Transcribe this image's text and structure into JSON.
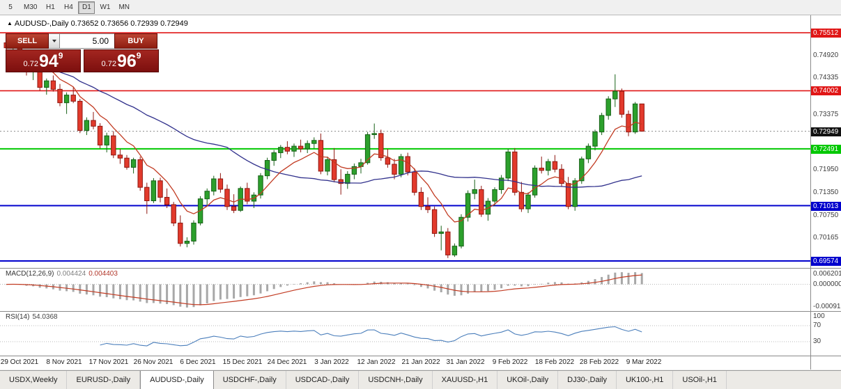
{
  "toolbar": {
    "timeframes": [
      "5",
      "M30",
      "H1",
      "H4",
      "D1",
      "W1",
      "MN"
    ],
    "active": "D1"
  },
  "chart": {
    "marker": "▲",
    "title_symbol": "AUDUSD-,Daily",
    "title_ohlc": "0.73652 0.73656 0.72939 0.72949"
  },
  "trade_panel": {
    "sell_label": "SELL",
    "buy_label": "BUY",
    "volume": "5.00",
    "sell_small": "0.72",
    "sell_big": "94",
    "sell_sup": "9",
    "buy_small": "0.72",
    "buy_big": "96",
    "buy_sup": "9"
  },
  "macd": {
    "name": "MACD(12,26,9)",
    "main_value": "0.004424",
    "signal_value": "0.004403",
    "axis_labels": [
      "0.006201",
      "0.000000",
      "-0.000919"
    ]
  },
  "rsi": {
    "name": "RSI(14)",
    "value": "54.0368",
    "axis_labels": [
      "100",
      "70",
      "30"
    ],
    "level_lines": [
      70,
      30
    ]
  },
  "tabs": {
    "items": [
      "USDX,Weekly",
      "EURUSD-,Daily",
      "AUDUSD-,Daily",
      "USDCHF-,Daily",
      "USDCAD-,Daily",
      "USDCNH-,Daily",
      "XAUUSD-,H1",
      "UKOil-,Daily",
      "DJ30-,Daily",
      "UK100-,H1",
      "USOil-,H1"
    ],
    "active": "AUDUSD-,Daily"
  },
  "colors": {
    "bull": "#2ca02c",
    "bull_edge": "#176117",
    "bear": "#e23a2c",
    "bear_edge": "#8f1710",
    "ma_fast": "#c23b22",
    "ma_slow": "#31318c",
    "macd_hist": "#a8a8a8",
    "macd_signal": "#c23b22",
    "rsi_line": "#4a7ebb",
    "grid_dotted": "#b8b8b8",
    "current_label_bg": "#111111"
  },
  "chart_data": {
    "type": "candlestick",
    "symbol": "AUDUSD-,Daily",
    "ylim": [
      0.69393,
      0.75965
    ],
    "current_price": 0.72949,
    "current_label": "0.72949",
    "price_axis_ticks": [
      "0.74920",
      "0.74335",
      "0.73375",
      "0.71950",
      "0.71350",
      "0.70750",
      "0.70165"
    ],
    "levels": [
      {
        "price": 0.75512,
        "label": "0.75512",
        "color": "#e01616",
        "width": 1.6
      },
      {
        "price": 0.74002,
        "label": "0.74002",
        "color": "#e01616",
        "width": 1.6
      },
      {
        "price": 0.72491,
        "label": "0.72491",
        "color": "#00c800",
        "width": 2
      },
      {
        "price": 0.71013,
        "label": "0.71013",
        "color": "#0000cd",
        "width": 2
      },
      {
        "price": 0.69574,
        "label": "0.69574",
        "color": "#0000cd",
        "width": 2
      }
    ],
    "x_dates": [
      "29 Oct 2021",
      "8 Nov 2021",
      "17 Nov 2021",
      "26 Nov 2021",
      "6 Dec 2021",
      "15 Dec 2021",
      "24 Dec 2021",
      "3 Jan 2022",
      "12 Jan 2022",
      "21 Jan 2022",
      "31 Jan 2022",
      "9 Feb 2022",
      "18 Feb 2022",
      "28 Feb 2022",
      "9 Mar 2022"
    ],
    "overlays": [
      {
        "name": "ma-fast",
        "type": "ema",
        "period": 8,
        "color": "#c23b22"
      },
      {
        "name": "ma-slow",
        "type": "sma",
        "period": 34,
        "color": "#31318c"
      }
    ],
    "candles_ohlc": [
      [
        0.7525,
        0.7545,
        0.7505,
        0.7512
      ],
      [
        0.7512,
        0.7536,
        0.7495,
        0.753
      ],
      [
        0.753,
        0.7538,
        0.7468,
        0.7476
      ],
      [
        0.7476,
        0.7496,
        0.744,
        0.7449
      ],
      [
        0.7449,
        0.747,
        0.7428,
        0.7462
      ],
      [
        0.7462,
        0.7475,
        0.74,
        0.7409
      ],
      [
        0.7409,
        0.7432,
        0.739,
        0.7426
      ],
      [
        0.7426,
        0.744,
        0.7398,
        0.7404
      ],
      [
        0.7404,
        0.7418,
        0.736,
        0.7369
      ],
      [
        0.7369,
        0.7396,
        0.734,
        0.7389
      ],
      [
        0.7389,
        0.741,
        0.7368,
        0.7373
      ],
      [
        0.7373,
        0.7379,
        0.729,
        0.7297
      ],
      [
        0.7297,
        0.7331,
        0.7285,
        0.7323
      ],
      [
        0.7323,
        0.7345,
        0.73,
        0.7308
      ],
      [
        0.7308,
        0.7316,
        0.725,
        0.7259
      ],
      [
        0.7259,
        0.7291,
        0.724,
        0.7283
      ],
      [
        0.7283,
        0.7295,
        0.7225,
        0.7233
      ],
      [
        0.7233,
        0.7249,
        0.721,
        0.7225
      ],
      [
        0.7225,
        0.7233,
        0.7195,
        0.7201
      ],
      [
        0.7201,
        0.7226,
        0.7185,
        0.7221
      ],
      [
        0.7221,
        0.7229,
        0.714,
        0.7149
      ],
      [
        0.7149,
        0.7161,
        0.708,
        0.7114
      ],
      [
        0.7114,
        0.7173,
        0.7108,
        0.7166
      ],
      [
        0.7166,
        0.7174,
        0.711,
        0.7123
      ],
      [
        0.7123,
        0.7146,
        0.7095,
        0.7104
      ],
      [
        0.7104,
        0.7111,
        0.7048,
        0.7056
      ],
      [
        0.7056,
        0.7076,
        0.6995,
        0.7003
      ],
      [
        0.7003,
        0.7019,
        0.6993,
        0.7009
      ],
      [
        0.7009,
        0.7063,
        0.7,
        0.7056
      ],
      [
        0.7056,
        0.7126,
        0.705,
        0.7119
      ],
      [
        0.7119,
        0.7146,
        0.71,
        0.7139
      ],
      [
        0.7139,
        0.7179,
        0.7128,
        0.7171
      ],
      [
        0.7171,
        0.7186,
        0.7135,
        0.7144
      ],
      [
        0.7144,
        0.7156,
        0.709,
        0.7099
      ],
      [
        0.7099,
        0.7131,
        0.7082,
        0.7089
      ],
      [
        0.7089,
        0.7151,
        0.7085,
        0.7146
      ],
      [
        0.7146,
        0.7161,
        0.7105,
        0.7113
      ],
      [
        0.7113,
        0.7136,
        0.7095,
        0.7129
      ],
      [
        0.7129,
        0.7186,
        0.712,
        0.7179
      ],
      [
        0.7179,
        0.7226,
        0.717,
        0.7219
      ],
      [
        0.7219,
        0.7246,
        0.7205,
        0.7239
      ],
      [
        0.7239,
        0.7259,
        0.7225,
        0.7253
      ],
      [
        0.7253,
        0.7269,
        0.7235,
        0.7243
      ],
      [
        0.7243,
        0.7263,
        0.7228,
        0.7256
      ],
      [
        0.7256,
        0.7273,
        0.724,
        0.7249
      ],
      [
        0.7249,
        0.7271,
        0.7238,
        0.7263
      ],
      [
        0.7263,
        0.7279,
        0.725,
        0.7271
      ],
      [
        0.7271,
        0.7289,
        0.7183,
        0.7191
      ],
      [
        0.7191,
        0.7229,
        0.718,
        0.7221
      ],
      [
        0.7221,
        0.7251,
        0.7162,
        0.7169
      ],
      [
        0.7169,
        0.7196,
        0.713,
        0.7159
      ],
      [
        0.7159,
        0.7191,
        0.7145,
        0.7183
      ],
      [
        0.7183,
        0.7211,
        0.717,
        0.7203
      ],
      [
        0.7203,
        0.7223,
        0.7185,
        0.7213
      ],
      [
        0.7213,
        0.7293,
        0.7208,
        0.7286
      ],
      [
        0.7286,
        0.7315,
        0.7275,
        0.7289
      ],
      [
        0.7289,
        0.7299,
        0.7218,
        0.7226
      ],
      [
        0.7226,
        0.7249,
        0.72,
        0.7209
      ],
      [
        0.7209,
        0.7223,
        0.717,
        0.7183
      ],
      [
        0.7183,
        0.7236,
        0.7175,
        0.7229
      ],
      [
        0.7229,
        0.7239,
        0.718,
        0.7189
      ],
      [
        0.7189,
        0.7199,
        0.7128,
        0.7136
      ],
      [
        0.7136,
        0.7149,
        0.709,
        0.7099
      ],
      [
        0.7099,
        0.7123,
        0.7082,
        0.7091
      ],
      [
        0.7091,
        0.7099,
        0.702,
        0.7029
      ],
      [
        0.7029,
        0.7049,
        0.6985,
        0.7033
      ],
      [
        0.7033,
        0.7043,
        0.6965,
        0.6973
      ],
      [
        0.6973,
        0.7003,
        0.6968,
        0.6996
      ],
      [
        0.6996,
        0.7079,
        0.699,
        0.7071
      ],
      [
        0.7071,
        0.7141,
        0.706,
        0.7133
      ],
      [
        0.7133,
        0.7169,
        0.7118,
        0.7143
      ],
      [
        0.7143,
        0.7153,
        0.7072,
        0.7079
      ],
      [
        0.7079,
        0.7121,
        0.7062,
        0.7113
      ],
      [
        0.7113,
        0.7149,
        0.71,
        0.7143
      ],
      [
        0.7143,
        0.7181,
        0.7132,
        0.7173
      ],
      [
        0.7173,
        0.7249,
        0.7165,
        0.7241
      ],
      [
        0.7241,
        0.7251,
        0.7128,
        0.7136
      ],
      [
        0.7136,
        0.7163,
        0.7085,
        0.7093
      ],
      [
        0.7093,
        0.7136,
        0.7082,
        0.7129
      ],
      [
        0.7129,
        0.7206,
        0.7122,
        0.7199
      ],
      [
        0.7199,
        0.7229,
        0.7185,
        0.7193
      ],
      [
        0.7193,
        0.7223,
        0.718,
        0.7216
      ],
      [
        0.7216,
        0.7233,
        0.7188,
        0.7196
      ],
      [
        0.7196,
        0.7209,
        0.715,
        0.7159
      ],
      [
        0.7159,
        0.7176,
        0.7092,
        0.7099
      ],
      [
        0.7099,
        0.7173,
        0.7088,
        0.7166
      ],
      [
        0.7166,
        0.7229,
        0.7158,
        0.7223
      ],
      [
        0.7223,
        0.7263,
        0.7212,
        0.7256
      ],
      [
        0.7256,
        0.7299,
        0.7245,
        0.7293
      ],
      [
        0.7293,
        0.7343,
        0.7285,
        0.7336
      ],
      [
        0.7336,
        0.7386,
        0.7325,
        0.7379
      ],
      [
        0.7379,
        0.7443,
        0.7358,
        0.7399
      ],
      [
        0.7399,
        0.7406,
        0.733,
        0.7339
      ],
      [
        0.7339,
        0.7349,
        0.7282,
        0.7293
      ],
      [
        0.7293,
        0.7371,
        0.7288,
        0.7366
      ],
      [
        0.7366,
        0.7366,
        0.7294,
        0.7295
      ]
    ]
  }
}
